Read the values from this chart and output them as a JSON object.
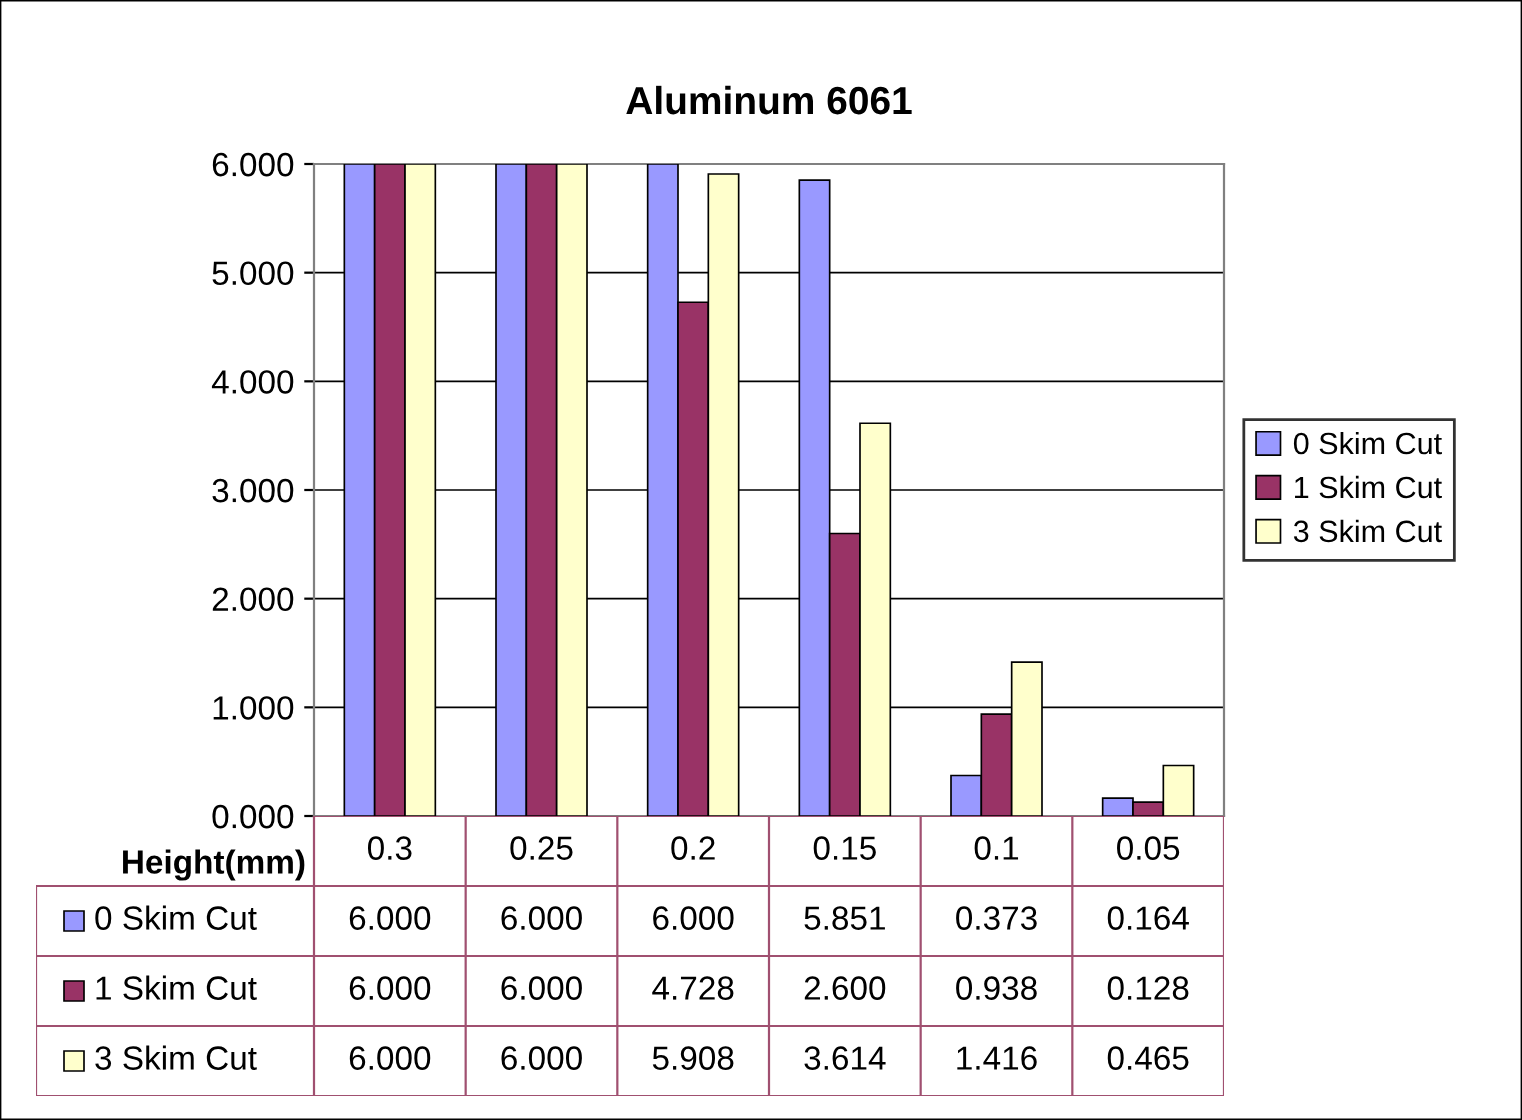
{
  "chart_data": {
    "type": "bar",
    "title": "Aluminum 6061",
    "xlabel": "Height(mm)",
    "categories": [
      "0.3",
      "0.25",
      "0.2",
      "0.15",
      "0.1",
      "0.05"
    ],
    "series": [
      {
        "name": "0 Skim Cut",
        "color": "#9999ff",
        "values": [
          6.0,
          6.0,
          6.0,
          5.851,
          0.373,
          0.164
        ],
        "value_labels": [
          "6.000",
          "6.000",
          "6.000",
          "5.851",
          "0.373",
          "0.164"
        ]
      },
      {
        "name": "1 Skim Cut",
        "color": "#993366",
        "values": [
          6.0,
          6.0,
          4.728,
          2.6,
          0.938,
          0.128
        ],
        "value_labels": [
          "6.000",
          "6.000",
          "4.728",
          "2.600",
          "0.938",
          "0.128"
        ]
      },
      {
        "name": "3 Skim Cut",
        "color": "#ffffcc",
        "values": [
          6.0,
          6.0,
          5.908,
          3.614,
          1.416,
          0.465
        ],
        "value_labels": [
          "6.000",
          "6.000",
          "5.908",
          "3.614",
          "1.416",
          "0.465"
        ]
      }
    ],
    "ylim": [
      0,
      6
    ],
    "yticks": [
      {
        "value": 0,
        "label": "0.000"
      },
      {
        "value": 1,
        "label": "1.000"
      },
      {
        "value": 2,
        "label": "2.000"
      },
      {
        "value": 3,
        "label": "3.000"
      },
      {
        "value": 4,
        "label": "4.000"
      },
      {
        "value": 5,
        "label": "5.000"
      },
      {
        "value": 6,
        "label": "6.000"
      }
    ],
    "grid": "y",
    "legend": "right"
  }
}
